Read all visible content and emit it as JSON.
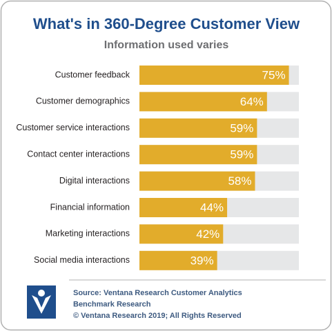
{
  "chart_data": {
    "type": "hbar",
    "title": "What's in 360-Degree Customer View",
    "subtitle": "Information used varies",
    "categories": [
      "Customer feedback",
      "Customer demographics",
      "Customer service interactions",
      "Contact center interactions",
      "Digital interactions",
      "Financial information",
      "Marketing interactions",
      "Social media interactions"
    ],
    "values": [
      75,
      64,
      59,
      59,
      58,
      44,
      42,
      39
    ],
    "value_labels": [
      "75%",
      "64%",
      "59%",
      "59%",
      "58%",
      "44%",
      "42%",
      "39%"
    ],
    "color": "#e2ac2b",
    "track_color": "#e6e7e8",
    "xlim": [
      0,
      80
    ],
    "source": [
      "Source: Ventana Research Customer Analytics",
      "Benchmark Research",
      "© Ventana Research 2019; All Rights Reserved"
    ]
  }
}
